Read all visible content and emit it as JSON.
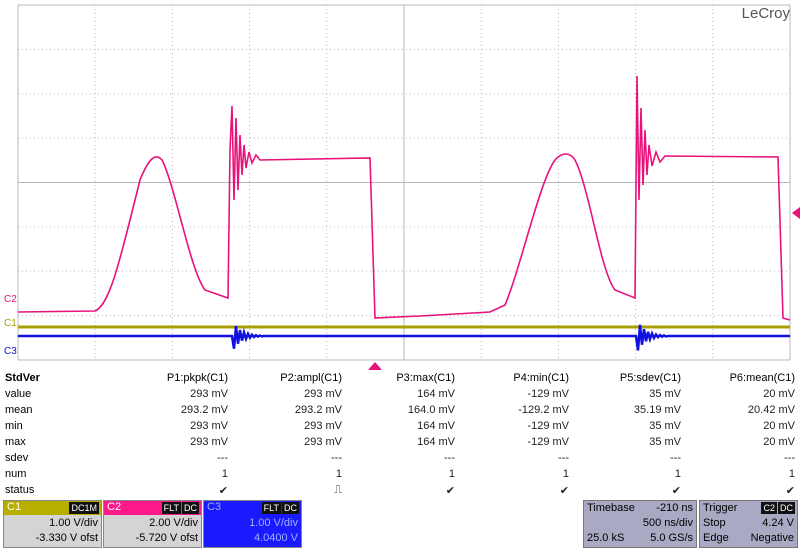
{
  "logo": "LeCroy",
  "trace_labels": [
    {
      "text": "C2",
      "color": "#e8127a"
    },
    {
      "text": "C1",
      "color": "#a8a000"
    },
    {
      "text": "C3",
      "color": "#1010e0"
    }
  ],
  "table": {
    "title": "StdVer",
    "columns": [
      "P1:pkpk(C1)",
      "P2:ampl(C1)",
      "P3:max(C1)",
      "P4:min(C1)",
      "P5:sdev(C1)",
      "P6:mean(C1)"
    ],
    "rows": [
      {
        "label": "value",
        "cells": [
          "293 mV",
          "293 mV",
          "164 mV",
          "-129 mV",
          "35 mV",
          "20 mV"
        ]
      },
      {
        "label": "mean",
        "cells": [
          "293.2 mV",
          "293.2 mV",
          "164.0 mV",
          "-129.2 mV",
          "35.19 mV",
          "20.42 mV"
        ]
      },
      {
        "label": "min",
        "cells": [
          "293 mV",
          "293 mV",
          "164 mV",
          "-129 mV",
          "35 mV",
          "20 mV"
        ]
      },
      {
        "label": "max",
        "cells": [
          "293 mV",
          "293 mV",
          "164 mV",
          "-129 mV",
          "35 mV",
          "20 mV"
        ]
      },
      {
        "label": "sdev",
        "cells": [
          "---",
          "---",
          "---",
          "---",
          "---",
          "---"
        ]
      },
      {
        "label": "num",
        "cells": [
          "1",
          "1",
          "1",
          "1",
          "1",
          "1"
        ]
      },
      {
        "label": "status",
        "cells": [
          "✔",
          "⎍",
          "✔",
          "✔",
          "✔",
          "✔"
        ]
      }
    ]
  },
  "channels": [
    {
      "name": "C1",
      "tags": [
        "DC1M"
      ],
      "scale": "1.00 V/div",
      "offset": "-3.330 V ofst",
      "color": "#b8ae00"
    },
    {
      "name": "C2",
      "tags": [
        "FLT",
        "DC"
      ],
      "scale": "2.00 V/div",
      "offset": "-5.720 V ofst",
      "color": "#ff1a8c"
    },
    {
      "name": "C3",
      "tags": [
        "FLT",
        "DC"
      ],
      "scale": "1.00 V/div",
      "offset": "4.0400 V",
      "color": "#1a1aff"
    }
  ],
  "timebase": {
    "title": "Timebase",
    "delay": "-210 ns",
    "lines": [
      [
        "",
        "500 ns/div"
      ],
      [
        "25.0 kS",
        "5.0 GS/s"
      ]
    ]
  },
  "trigger": {
    "title": "Trigger",
    "tags": [
      "C2",
      "DC"
    ],
    "lines": [
      [
        "Stop",
        "4.24 V"
      ],
      [
        "Edge",
        "Negative"
      ]
    ]
  }
}
